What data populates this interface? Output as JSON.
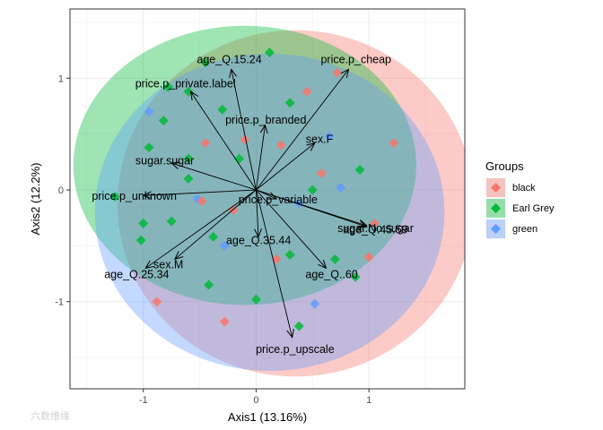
{
  "chart_data": {
    "type": "scatter",
    "subtype": "biplot",
    "xlabel": "Axis1 (13.16%)",
    "ylabel": "Axis2 (12.2%)",
    "xlim": [
      -1.65,
      1.85
    ],
    "ylim": [
      -1.78,
      1.62
    ],
    "xticks": [
      -1,
      0,
      1
    ],
    "yticks": [
      -1,
      0,
      1
    ],
    "xtick_labels": [
      "-1",
      "0",
      "1"
    ],
    "ytick_labels": [
      "-1",
      "0",
      "1"
    ],
    "grid": true,
    "legend": {
      "title": "Groups",
      "position": "right",
      "entries": [
        {
          "name": "black",
          "color": "#F8766D"
        },
        {
          "name": "Earl Grey",
          "color": "#00BA38"
        },
        {
          "name": "green",
          "color": "#619CFF"
        }
      ]
    },
    "ellipses": [
      {
        "group": "black",
        "cx": 0.35,
        "cy": -0.12,
        "rx": 1.58,
        "ry": 1.55,
        "color": "#F8766D"
      },
      {
        "group": "Earl Grey",
        "cx": -0.1,
        "cy": 0.22,
        "rx": 1.52,
        "ry": 1.25,
        "color": "#00BA38"
      },
      {
        "group": "green",
        "cx": 0.12,
        "cy": -0.2,
        "rx": 1.55,
        "ry": 1.42,
        "color": "#619CFF"
      }
    ],
    "arrows": [
      {
        "label": "age_Q.15.24",
        "x": -0.22,
        "y": 1.08
      },
      {
        "label": "price.p_cheap",
        "x": 0.82,
        "y": 1.08
      },
      {
        "label": "price.p_private.label",
        "x": -0.58,
        "y": 0.88
      },
      {
        "label": "price.p_branded",
        "x": 0.08,
        "y": 0.58
      },
      {
        "label": "sex.F",
        "x": 0.52,
        "y": 0.42
      },
      {
        "label": "sugar.sugar",
        "x": -0.75,
        "y": 0.24
      },
      {
        "label": "price.p_unknown",
        "x": -1.0,
        "y": -0.05
      },
      {
        "label": "price.p_variable",
        "x": 0.18,
        "y": -0.08
      },
      {
        "label": "sugar.No.sugar",
        "x": 0.98,
        "y": -0.32
      },
      {
        "label": "age_Q.45.59",
        "x": 0.98,
        "y": -0.33
      },
      {
        "label": "age_Q.35.44",
        "x": 0.02,
        "y": -0.42
      },
      {
        "label": "sex.M",
        "x": -0.72,
        "y": -0.62
      },
      {
        "label": "age_Q.25.34",
        "x": -0.98,
        "y": -0.7
      },
      {
        "label": "age_Q..60",
        "x": 0.62,
        "y": -0.7
      },
      {
        "label": "price.p_upscale",
        "x": 0.32,
        "y": -1.32
      }
    ],
    "points": [
      {
        "group": "Earl Grey",
        "x": 0.12,
        "y": 1.23
      },
      {
        "group": "Earl Grey",
        "x": -0.45,
        "y": 1.14
      },
      {
        "group": "Earl Grey",
        "x": -0.78,
        "y": 0.92
      },
      {
        "group": "Earl Grey",
        "x": -0.6,
        "y": 0.88
      },
      {
        "group": "Earl Grey",
        "x": -0.82,
        "y": 0.62
      },
      {
        "group": "Earl Grey",
        "x": -0.3,
        "y": 0.72
      },
      {
        "group": "Earl Grey",
        "x": 0.3,
        "y": 0.78
      },
      {
        "group": "Earl Grey",
        "x": -0.95,
        "y": 0.38
      },
      {
        "group": "Earl Grey",
        "x": -0.6,
        "y": 0.28
      },
      {
        "group": "Earl Grey",
        "x": -1.25,
        "y": -0.06
      },
      {
        "group": "Earl Grey",
        "x": -1.0,
        "y": -0.3
      },
      {
        "group": "Earl Grey",
        "x": -1.02,
        "y": -0.45
      },
      {
        "group": "Earl Grey",
        "x": -0.75,
        "y": -0.28
      },
      {
        "group": "Earl Grey",
        "x": 0.92,
        "y": 0.18
      },
      {
        "group": "Earl Grey",
        "x": -0.42,
        "y": -0.85
      },
      {
        "group": "Earl Grey",
        "x": 0.7,
        "y": -0.62
      },
      {
        "group": "Earl Grey",
        "x": 0.88,
        "y": -0.78
      },
      {
        "group": "Earl Grey",
        "x": 0.38,
        "y": -1.22
      },
      {
        "group": "Earl Grey",
        "x": 0.0,
        "y": -0.98
      },
      {
        "group": "Earl Grey",
        "x": 0.3,
        "y": -0.58
      },
      {
        "group": "Earl Grey",
        "x": -0.38,
        "y": -0.42
      },
      {
        "group": "Earl Grey",
        "x": -0.15,
        "y": 0.28
      },
      {
        "group": "Earl Grey",
        "x": 0.5,
        "y": 0.0
      },
      {
        "group": "Earl Grey",
        "x": -0.6,
        "y": 0.1
      },
      {
        "group": "green",
        "x": -0.95,
        "y": 0.7
      },
      {
        "group": "green",
        "x": 0.65,
        "y": 0.48
      },
      {
        "group": "green",
        "x": 0.75,
        "y": 0.02
      },
      {
        "group": "green",
        "x": -0.52,
        "y": -0.08
      },
      {
        "group": "green",
        "x": -0.28,
        "y": -0.5
      },
      {
        "group": "green",
        "x": 0.52,
        "y": -1.02
      },
      {
        "group": "green",
        "x": 0.38,
        "y": -0.12
      },
      {
        "group": "black",
        "x": 0.72,
        "y": 1.05
      },
      {
        "group": "black",
        "x": 1.22,
        "y": 0.42
      },
      {
        "group": "black",
        "x": 1.0,
        "y": -0.6
      },
      {
        "group": "black",
        "x": -0.88,
        "y": -1.0
      },
      {
        "group": "black",
        "x": -0.28,
        "y": -1.18
      },
      {
        "group": "black",
        "x": 1.05,
        "y": -0.3
      },
      {
        "group": "black",
        "x": 0.22,
        "y": 0.4
      },
      {
        "group": "black",
        "x": -0.48,
        "y": -0.1
      },
      {
        "group": "black",
        "x": 0.58,
        "y": 0.15
      },
      {
        "group": "black",
        "x": 0.18,
        "y": -0.62
      },
      {
        "group": "black",
        "x": -0.1,
        "y": 0.45
      },
      {
        "group": "black",
        "x": 0.45,
        "y": 0.88
      },
      {
        "group": "black",
        "x": -0.45,
        "y": 0.42
      },
      {
        "group": "black",
        "x": -0.2,
        "y": -0.18
      }
    ]
  },
  "watermark": "六数维缘"
}
